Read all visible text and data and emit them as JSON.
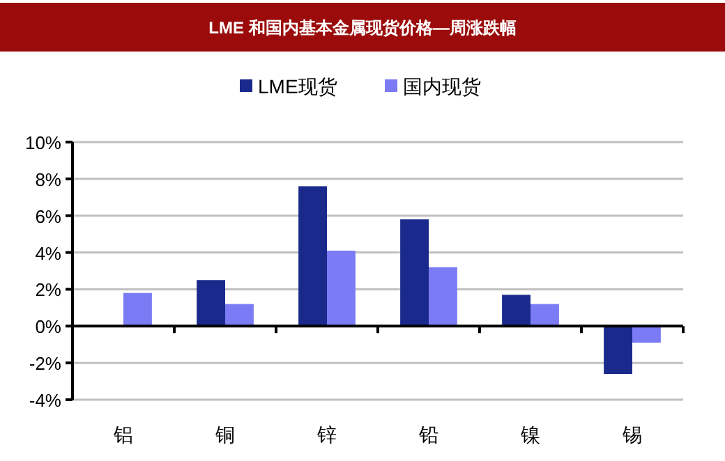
{
  "chart_data": {
    "type": "bar",
    "title": "LME 和国内基本金属现货价格—周涨跌幅",
    "categories": [
      "铝",
      "铜",
      "锌",
      "铅",
      "镍",
      "锡"
    ],
    "series": [
      {
        "name": "LME现货",
        "color": "#1a2a8c",
        "values": [
          0,
          2.5,
          7.6,
          5.8,
          1.7,
          -2.6
        ]
      },
      {
        "name": "国内现货",
        "color": "#7b7bf5",
        "values": [
          1.8,
          1.2,
          4.1,
          3.2,
          1.2,
          -0.9
        ]
      }
    ],
    "ylim": [
      -4,
      10
    ],
    "yticks": [
      {
        "value": -4,
        "label": "-4%"
      },
      {
        "value": -2,
        "label": "-2%"
      },
      {
        "value": 0,
        "label": "0%"
      },
      {
        "value": 2,
        "label": "2%"
      },
      {
        "value": 4,
        "label": "4%"
      },
      {
        "value": 6,
        "label": "6%"
      },
      {
        "value": 8,
        "label": "8%"
      },
      {
        "value": 10,
        "label": "10%"
      }
    ],
    "grid": "y",
    "legend": "top"
  }
}
